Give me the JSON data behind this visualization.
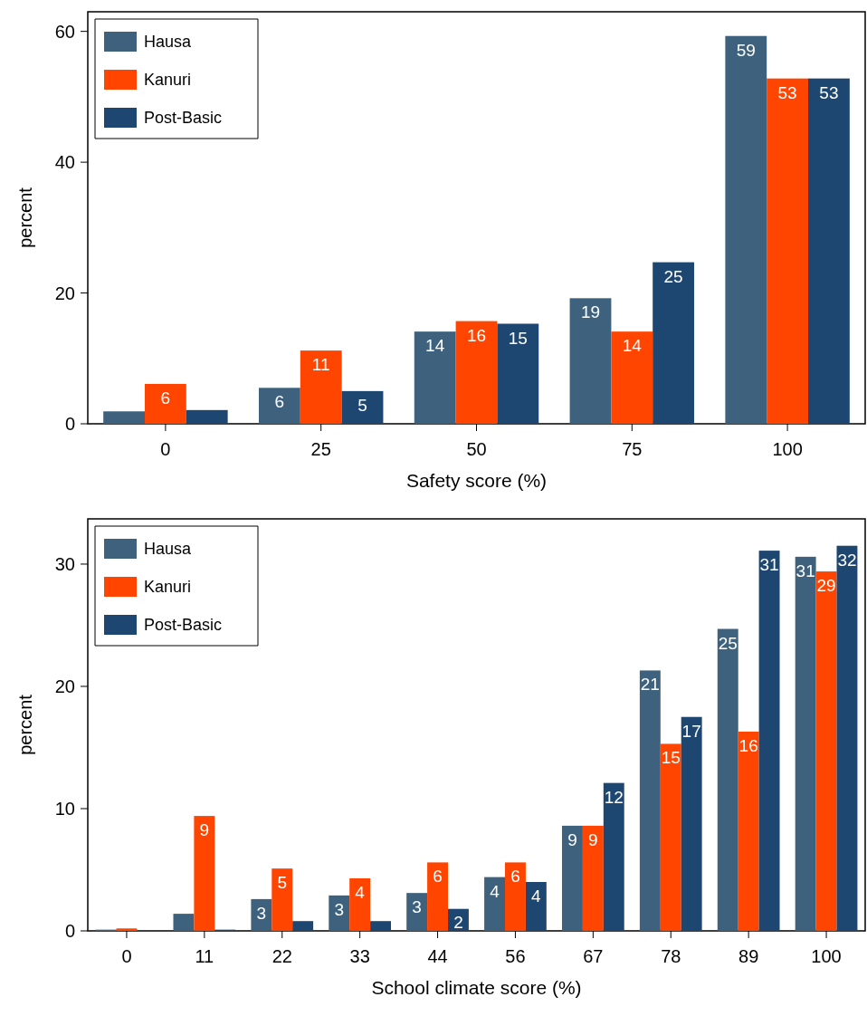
{
  "chart_data": [
    {
      "type": "bar",
      "xlabel": "Safety score (%)",
      "ylabel": "percent",
      "categories": [
        "0",
        "25",
        "50",
        "75",
        "100"
      ],
      "ylim": [
        0,
        63
      ],
      "yticks": [
        0,
        20,
        40,
        60
      ],
      "grid": false,
      "legend": "top left",
      "series": [
        {
          "name": "Hausa",
          "color": "#3e627e",
          "values": [
            1.9,
            5.5,
            14.1,
            19.2,
            59.3
          ],
          "value_labels": [
            null,
            "6",
            "14",
            "19",
            "59"
          ]
        },
        {
          "name": "Kanuri",
          "color": "#ff4500",
          "values": [
            6.1,
            11.2,
            15.7,
            14.1,
            52.8
          ],
          "value_labels": [
            "6",
            "11",
            "16",
            "14",
            "53"
          ]
        },
        {
          "name": "Post-Basic",
          "color": "#1d4670",
          "values": [
            2.1,
            5.0,
            15.3,
            24.7,
            52.8
          ],
          "value_labels": [
            null,
            "5",
            "15",
            "25",
            "53"
          ]
        }
      ]
    },
    {
      "type": "bar",
      "xlabel": "School climate score (%)",
      "ylabel": "percent",
      "categories": [
        "0",
        "11",
        "22",
        "33",
        "44",
        "56",
        "67",
        "78",
        "89",
        "100"
      ],
      "ylim": [
        0,
        33.7
      ],
      "yticks": [
        0,
        10,
        20,
        30
      ],
      "grid": false,
      "legend": "top left",
      "series": [
        {
          "name": "Hausa",
          "color": "#3e627e",
          "values": [
            0.1,
            1.4,
            2.6,
            2.9,
            3.1,
            4.4,
            8.6,
            21.3,
            24.7,
            30.6
          ],
          "value_labels": [
            null,
            null,
            "3",
            "3",
            "3",
            "4",
            "9",
            "21",
            "25",
            "31"
          ]
        },
        {
          "name": "Kanuri",
          "color": "#ff4500",
          "values": [
            0.2,
            9.4,
            5.1,
            4.3,
            5.6,
            5.6,
            8.6,
            15.3,
            16.3,
            29.4
          ],
          "value_labels": [
            null,
            "9",
            "5",
            "4",
            "6",
            "6",
            "9",
            "15",
            "16",
            "29"
          ]
        },
        {
          "name": "Post-Basic",
          "color": "#1d4670",
          "values": [
            0,
            0.1,
            0.8,
            0.8,
            1.8,
            4.0,
            12.1,
            17.5,
            31.1,
            31.5
          ],
          "value_labels": [
            null,
            null,
            null,
            null,
            "2",
            "4",
            "12",
            "17",
            "31",
            "32"
          ]
        }
      ]
    }
  ]
}
